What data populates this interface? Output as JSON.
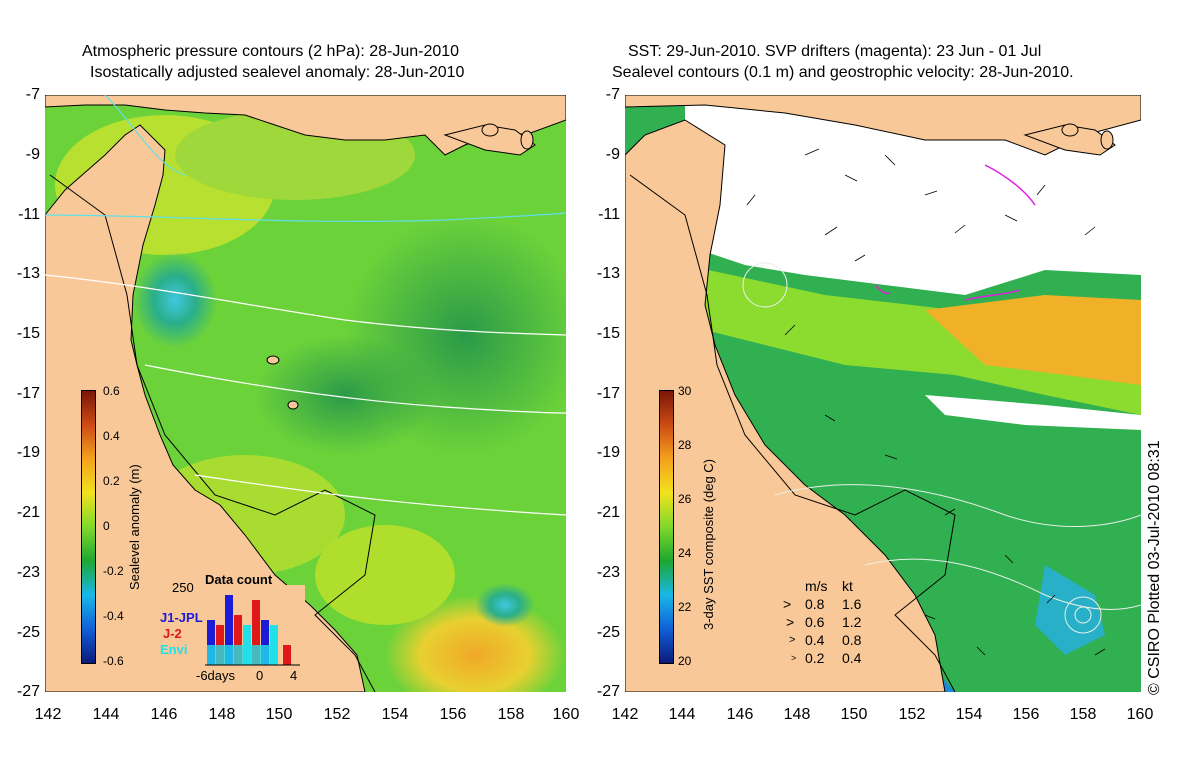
{
  "left_panel": {
    "title_line1": "Atmospheric pressure contours (2 hPa): 28-Jun-2010",
    "title_line2": "Isostatically adjusted sealevel anomaly: 28-Jun-2010",
    "colorbar": {
      "title": "Sealevel anomaly (m)",
      "ticks": [
        "0.6",
        "0.4",
        "0.2",
        "0",
        "-0.2",
        "-0.4",
        "-0.6"
      ],
      "range": [
        -0.6,
        0.6
      ],
      "colors": [
        "#0b1a7a",
        "#1060d8",
        "#18b8e8",
        "#1ea632",
        "#7fd82a",
        "#f1e21e",
        "#f4a21d",
        "#cc4b15",
        "#7a1508"
      ]
    },
    "data_count": {
      "title": "Data count",
      "y_max_label": "250",
      "x_labels": [
        "-6days",
        "0",
        "4"
      ],
      "series": [
        {
          "name": "J1-JPL",
          "color": "#1c1cd8"
        },
        {
          "name": "J-2",
          "color": "#e01818"
        },
        {
          "name": "Envi",
          "color": "#22e0e8"
        }
      ]
    }
  },
  "right_panel": {
    "title_line1": "SST: 29-Jun-2010. SVP drifters (magenta): 23 Jun - 01 Jul",
    "title_line2": "Sealevel contours (0.1 m) and geostrophic velocity: 28-Jun-2010.",
    "colorbar": {
      "title": "3-day SST composite (deg C)",
      "ticks": [
        "30",
        "28",
        "26",
        "24",
        "22",
        "20"
      ],
      "range": [
        20,
        30
      ],
      "colors": [
        "#0b1a7a",
        "#1060d8",
        "#18b8e8",
        "#1ea632",
        "#7fd82a",
        "#f1e21e",
        "#f4a21d",
        "#cc4b15",
        "#7a1508"
      ]
    },
    "velocity_legend": {
      "header_ms": "m/s",
      "header_kt": "kt",
      "rows": [
        {
          "ms": "0.8",
          "kt": "1.6"
        },
        {
          "ms": "0.6",
          "kt": "1.2"
        },
        {
          "ms": "0.4",
          "kt": "0.8"
        },
        {
          "ms": "0.2",
          "kt": "0.4"
        }
      ]
    }
  },
  "axes": {
    "lat_labels": [
      "-7",
      "-9",
      "-11",
      "-13",
      "-15",
      "-17",
      "-19",
      "-21",
      "-23",
      "-25",
      "-27"
    ],
    "lon_labels": [
      "142",
      "144",
      "146",
      "148",
      "150",
      "152",
      "154",
      "156",
      "158",
      "160"
    ],
    "lat_range": [
      -27,
      -7
    ],
    "lon_range": [
      142,
      160
    ]
  },
  "credit": "© CSIRO Plotted 03-Jul-2010 08:31",
  "colors": {
    "land": "#f8c898",
    "ocean_mid": "#58c83a",
    "cloud": "#ffffff"
  }
}
